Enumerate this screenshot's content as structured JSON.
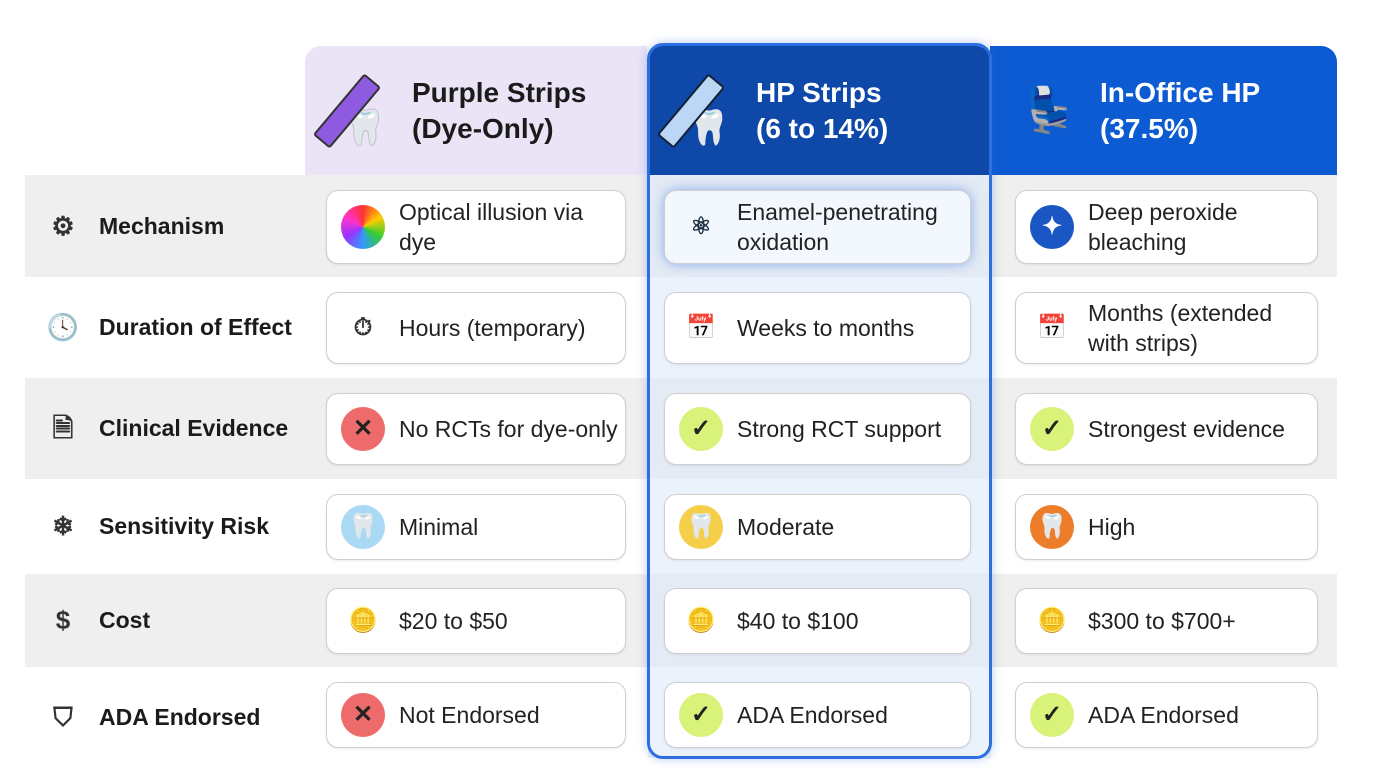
{
  "columns": [
    {
      "title_line1": "Purple Strips",
      "title_line2": "(Dye-Only)",
      "icon": "purple-strip-tooth-icon",
      "bg": "#ebe4f7"
    },
    {
      "title_line1": "HP Strips",
      "title_line2": "(6 to 14%)",
      "icon": "hp-strip-tooth-icon",
      "bg": "#0e48a8",
      "highlighted": true
    },
    {
      "title_line1": "In-Office HP",
      "title_line2": "(37.5%)",
      "icon": "dental-chair-icon",
      "bg": "#0c5bd2"
    }
  ],
  "rows": [
    {
      "label": "Mechanism",
      "icon": "gear-icon",
      "cells": [
        {
          "text": "Optical illusion via dye",
          "icon": "color-wheel-icon"
        },
        {
          "text": "Enamel-penetrating oxidation",
          "icon": "atom-icon"
        },
        {
          "text": "Deep peroxide bleaching",
          "icon": "sparkle-icon"
        }
      ]
    },
    {
      "label": "Duration of Effect",
      "icon": "clock-icon",
      "cells": [
        {
          "text": "Hours (temporary)",
          "icon": "stopwatch-icon"
        },
        {
          "text": "Weeks to months",
          "icon": "calendar-icon"
        },
        {
          "text": "Months (extended with strips)",
          "icon": "calendar-icon"
        }
      ]
    },
    {
      "label": "Clinical Evidence",
      "icon": "document-icon",
      "cells": [
        {
          "text": "No RCTs for dye-only",
          "icon": "x-icon"
        },
        {
          "text": "Strong RCT support",
          "icon": "check-icon"
        },
        {
          "text": "Strongest evidence",
          "icon": "check-icon"
        }
      ]
    },
    {
      "label": "Sensitivity Risk",
      "icon": "snowflake-icon",
      "cells": [
        {
          "text": "Minimal",
          "icon": "tooth-low-icon"
        },
        {
          "text": "Moderate",
          "icon": "tooth-moderate-icon"
        },
        {
          "text": "High",
          "icon": "tooth-high-icon"
        }
      ]
    },
    {
      "label": "Cost",
      "icon": "dollar-icon",
      "cells": [
        {
          "text": "$20 to $50",
          "icon": "coins-icon"
        },
        {
          "text": "$40 to $100",
          "icon": "coins-icon"
        },
        {
          "text": "$300 to $700+",
          "icon": "coins-icon"
        }
      ]
    },
    {
      "label": "ADA Endorsed",
      "icon": "shield-icon",
      "cells": [
        {
          "text": "Not Endorsed",
          "icon": "x-icon"
        },
        {
          "text": "ADA Endorsed",
          "icon": "check-icon"
        },
        {
          "text": "ADA Endorsed",
          "icon": "check-icon"
        }
      ]
    }
  ]
}
